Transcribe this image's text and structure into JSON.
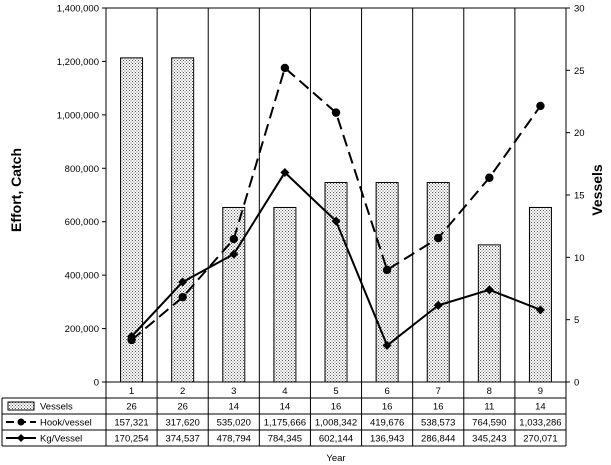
{
  "chart_data": {
    "type": "bar",
    "categories": [
      "1",
      "2",
      "3",
      "4",
      "5",
      "6",
      "7",
      "8",
      "9"
    ],
    "series": [
      {
        "name": "Vessels",
        "type": "bar",
        "axis": "right",
        "values": [
          26,
          26,
          14,
          14,
          16,
          16,
          16,
          11,
          14
        ],
        "table_labels": [
          "26",
          "26",
          "14",
          "14",
          "16",
          "16",
          "16",
          "11",
          "14"
        ]
      },
      {
        "name": "Hook/vessel",
        "type": "line",
        "axis": "left",
        "line_style": "dashed",
        "marker": "circle",
        "values": [
          157321,
          317620,
          535020,
          1175666,
          1008342,
          419676,
          538573,
          764590,
          1033286
        ],
        "table_labels": [
          "157,321",
          "317,620",
          "535,020",
          "1,175,666",
          "1,008,342",
          "419,676",
          "538,573",
          "764,590",
          "1,033,286"
        ]
      },
      {
        "name": "Kg/Vessel",
        "type": "line",
        "axis": "left",
        "line_style": "solid",
        "marker": "diamond",
        "values": [
          170254,
          374537,
          478794,
          784345,
          602144,
          136943,
          286844,
          345243,
          270071
        ],
        "table_labels": [
          "170,254",
          "374,537",
          "478,794",
          "784,345",
          "602,144",
          "136,943",
          "286,844",
          "345,243",
          "270,071"
        ]
      }
    ],
    "ylabel": "Effort, Catch",
    "y2label": "Vessels",
    "xlabel": "Year",
    "ylim": [
      0,
      1400000
    ],
    "y2lim": [
      0,
      30
    ],
    "yticks": [
      "0",
      "200,000",
      "400,000",
      "600,000",
      "800,000",
      "1,000,000",
      "1,200,000",
      "1,400,000"
    ],
    "y2ticks": [
      "0",
      "5",
      "10",
      "15",
      "20",
      "25",
      "30"
    ],
    "grid": "vertical",
    "legend": "data table below chart"
  }
}
